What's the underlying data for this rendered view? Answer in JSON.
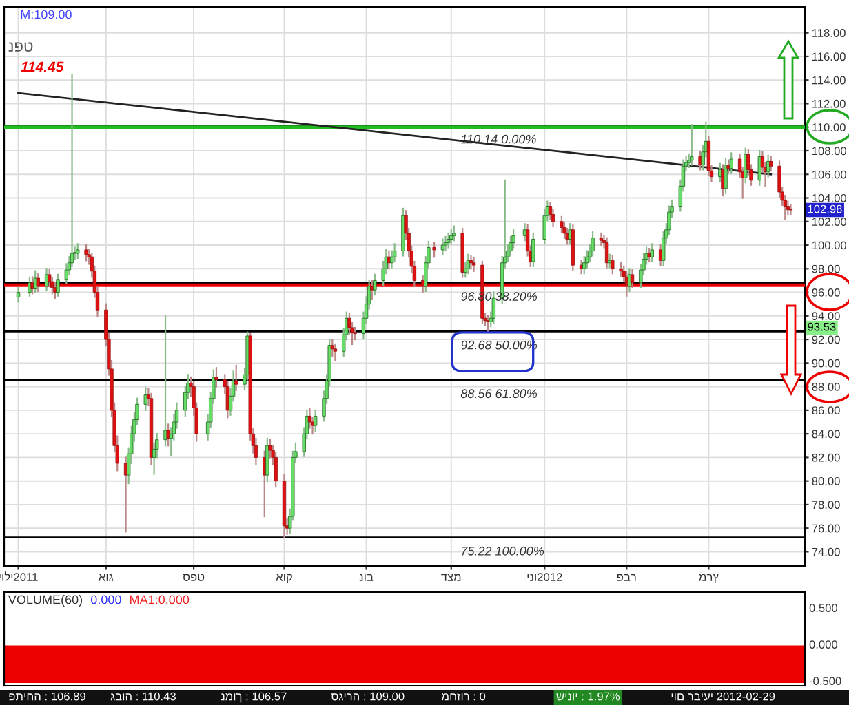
{
  "chart_data": [
    {
      "type": "candlestick",
      "x": [
        "2011-07-01",
        "2011-07-05",
        "2011-07-06",
        "2011-07-07",
        "2011-07-08",
        "2011-07-11",
        "2011-07-12",
        "2011-07-13",
        "2011-07-14",
        "2011-07-15",
        "2011-07-18",
        "2011-07-19",
        "2011-07-20",
        "2011-07-21",
        "2011-07-22",
        "2011-07-25",
        "2011-07-26",
        "2011-07-27",
        "2011-07-28",
        "2011-07-29",
        "2011-08-01",
        "2011-08-02",
        "2011-08-03",
        "2011-08-04",
        "2011-08-05",
        "2011-08-08",
        "2011-08-09",
        "2011-08-10",
        "2011-08-11",
        "2011-08-12",
        "2011-08-15",
        "2011-08-16",
        "2011-08-17",
        "2011-08-18",
        "2011-08-19",
        "2011-08-22",
        "2011-08-23",
        "2011-08-24",
        "2011-08-25",
        "2011-08-26",
        "2011-08-29",
        "2011-08-30",
        "2011-08-31",
        "2011-09-01",
        "2011-09-02",
        "2011-09-06",
        "2011-09-07",
        "2011-09-08",
        "2011-09-09",
        "2011-09-12",
        "2011-09-13",
        "2011-09-14",
        "2011-09-15",
        "2011-09-16",
        "2011-09-19",
        "2011-09-20",
        "2011-09-21",
        "2011-09-22",
        "2011-09-23",
        "2011-09-26",
        "2011-09-27",
        "2011-09-28",
        "2011-09-29",
        "2011-09-30",
        "2011-10-03",
        "2011-10-04",
        "2011-10-05",
        "2011-10-06",
        "2011-10-07",
        "2011-10-10",
        "2011-10-11",
        "2011-10-12",
        "2011-10-13",
        "2011-10-14",
        "2011-10-17",
        "2011-10-18",
        "2011-10-19",
        "2011-10-20",
        "2011-10-21",
        "2011-10-24",
        "2011-10-25",
        "2011-10-26",
        "2011-10-27",
        "2011-10-28",
        "2011-10-31",
        "2011-11-01",
        "2011-11-02",
        "2011-11-03",
        "2011-11-04",
        "2011-11-07",
        "2011-11-08",
        "2011-11-09",
        "2011-11-10",
        "2011-11-11",
        "2011-11-14",
        "2011-11-15",
        "2011-11-16",
        "2011-11-17",
        "2011-11-18",
        "2011-11-21",
        "2011-11-22",
        "2011-11-23",
        "2011-11-25",
        "2011-11-28",
        "2011-11-29",
        "2011-11-30",
        "2011-12-01",
        "2011-12-02",
        "2011-12-05",
        "2011-12-06",
        "2011-12-07",
        "2011-12-08",
        "2011-12-09",
        "2011-12-12",
        "2011-12-13",
        "2011-12-14",
        "2011-12-15",
        "2011-12-16",
        "2011-12-19",
        "2011-12-20",
        "2011-12-21",
        "2011-12-22",
        "2011-12-23",
        "2011-12-27",
        "2011-12-28",
        "2011-12-29",
        "2011-12-30",
        "2012-01-03",
        "2012-01-04",
        "2012-01-05",
        "2012-01-06",
        "2012-01-09",
        "2012-01-10",
        "2012-01-11",
        "2012-01-12",
        "2012-01-13",
        "2012-01-16",
        "2012-01-17",
        "2012-01-18",
        "2012-01-19",
        "2012-01-20",
        "2012-01-23",
        "2012-01-24",
        "2012-01-25",
        "2012-01-26",
        "2012-01-27",
        "2012-01-30",
        "2012-01-31",
        "2012-02-01",
        "2012-02-02",
        "2012-02-03",
        "2012-02-06",
        "2012-02-07",
        "2012-02-08",
        "2012-02-09",
        "2012-02-10",
        "2012-02-13",
        "2012-02-14",
        "2012-02-15",
        "2012-02-16",
        "2012-02-17",
        "2012-02-20",
        "2012-02-21",
        "2012-02-22",
        "2012-02-23",
        "2012-02-24",
        "2012-02-27",
        "2012-02-28",
        "2012-02-29",
        "2012-03-01",
        "2012-03-02",
        "2012-03-05",
        "2012-03-06",
        "2012-03-07",
        "2012-03-08",
        "2012-03-09",
        "2012-03-12",
        "2012-03-13",
        "2012-03-14",
        "2012-03-15",
        "2012-03-16",
        "2012-03-19",
        "2012-03-20",
        "2012-03-21",
        "2012-03-22",
        "2012-03-23",
        "2012-03-26",
        "2012-03-27",
        "2012-03-28",
        "2012-03-29",
        "2012-03-30"
      ],
      "ohlc": [
        [
          95.6,
          96.4,
          95.2,
          96.0
        ],
        [
          96.0,
          97.2,
          95.7,
          96.8
        ],
        [
          96.8,
          97.3,
          95.9,
          96.3
        ],
        [
          96.3,
          97.8,
          96.0,
          97.2
        ],
        [
          97.2,
          97.6,
          96.1,
          96.5
        ],
        [
          96.5,
          98.0,
          96.2,
          97.5
        ],
        [
          97.5,
          97.9,
          96.5,
          96.9
        ],
        [
          96.9,
          97.2,
          95.9,
          96.4
        ],
        [
          96.4,
          96.8,
          95.5,
          96.0
        ],
        [
          96.0,
          97.5,
          95.7,
          97.1
        ],
        [
          97.1,
          98.4,
          96.8,
          97.9
        ],
        [
          97.9,
          99.0,
          97.5,
          98.5
        ],
        [
          98.5,
          114.45,
          98.2,
          99.3
        ],
        [
          99.3,
          99.8,
          98.8,
          99.3
        ],
        [
          99.3,
          100.1,
          98.9,
          99.6
        ],
        [
          99.6,
          100.0,
          98.7,
          99.2
        ],
        [
          99.2,
          99.6,
          98.4,
          99.0
        ],
        [
          99.0,
          99.3,
          97.3,
          97.8
        ],
        [
          97.8,
          98.2,
          95.6,
          96.0
        ],
        [
          96.0,
          96.4,
          94.0,
          94.5
        ],
        [
          94.5,
          95.0,
          91.5,
          92.0
        ],
        [
          92.0,
          92.5,
          89.0,
          89.5
        ],
        [
          89.5,
          90.2,
          85.5,
          86.0
        ],
        [
          86.0,
          86.6,
          82.5,
          83.0
        ],
        [
          83.0,
          83.8,
          80.9,
          81.5
        ],
        [
          81.5,
          82.0,
          75.7,
          80.5
        ],
        [
          80.5,
          82.8,
          79.8,
          82.3
        ],
        [
          82.3,
          84.6,
          81.5,
          84.0
        ],
        [
          84.0,
          85.8,
          83.4,
          85.2
        ],
        [
          85.2,
          87.0,
          84.8,
          86.5
        ],
        [
          86.5,
          87.9,
          86.0,
          87.3
        ],
        [
          87.3,
          87.8,
          86.4,
          87.0
        ],
        [
          87.0,
          87.4,
          81.4,
          82.0
        ],
        [
          82.0,
          83.2,
          80.6,
          82.7
        ],
        [
          82.7,
          84.0,
          82.0,
          83.5
        ],
        [
          83.5,
          94.0,
          83.0,
          84.3
        ],
        [
          84.3,
          84.8,
          83.0,
          83.6
        ],
        [
          83.6,
          84.5,
          82.2,
          84.0
        ],
        [
          84.0,
          85.6,
          83.5,
          85.0
        ],
        [
          85.0,
          86.6,
          84.5,
          86.0
        ],
        [
          86.0,
          88.0,
          85.5,
          87.5
        ],
        [
          87.5,
          89.0,
          87.0,
          88.3
        ],
        [
          88.3,
          88.8,
          87.2,
          88.0
        ],
        [
          88.0,
          88.4,
          85.6,
          86.2
        ],
        [
          86.2,
          86.6,
          83.4,
          84.0
        ],
        [
          84.0,
          85.6,
          83.5,
          85.0
        ],
        [
          85.0,
          87.5,
          84.6,
          87.0
        ],
        [
          87.0,
          89.4,
          86.6,
          88.8
        ],
        [
          88.8,
          89.6,
          88.0,
          88.6
        ],
        [
          88.6,
          89.0,
          87.4,
          88.0
        ],
        [
          88.0,
          88.4,
          85.4,
          86.0
        ],
        [
          86.0,
          87.8,
          85.6,
          87.2
        ],
        [
          87.2,
          89.3,
          86.8,
          88.5
        ],
        [
          88.5,
          89.8,
          87.7,
          88.2
        ],
        [
          88.2,
          89.5,
          87.8,
          89.0
        ],
        [
          89.0,
          92.6,
          88.6,
          92.3
        ],
        [
          92.3,
          92.5,
          83.5,
          84.0
        ],
        [
          84.0,
          84.4,
          82.4,
          83.0
        ],
        [
          83.0,
          83.6,
          81.4,
          82.0
        ],
        [
          82.0,
          82.5,
          77.0,
          80.5
        ],
        [
          80.5,
          83.6,
          80.0,
          83.0
        ],
        [
          83.0,
          83.5,
          82.0,
          82.6
        ],
        [
          82.6,
          83.0,
          81.4,
          82.0
        ],
        [
          82.0,
          82.4,
          79.5,
          80.0
        ],
        [
          80.0,
          80.5,
          75.22,
          76.2
        ],
        [
          76.2,
          76.8,
          75.5,
          76.0
        ],
        [
          76.0,
          77.6,
          75.6,
          77.0
        ],
        [
          77.0,
          82.5,
          76.7,
          82.0
        ],
        [
          82.0,
          83.2,
          81.6,
          82.5
        ],
        [
          82.5,
          84.5,
          82.1,
          84.0
        ],
        [
          84.0,
          86.0,
          83.6,
          85.5
        ],
        [
          85.5,
          86.1,
          84.5,
          85.0
        ],
        [
          85.0,
          85.4,
          84.0,
          84.7
        ],
        [
          84.7,
          86.0,
          84.2,
          85.5
        ],
        [
          85.5,
          87.6,
          85.1,
          87.0
        ],
        [
          87.0,
          89.0,
          86.6,
          88.5
        ],
        [
          88.5,
          92.0,
          88.1,
          91.5
        ],
        [
          91.5,
          92.0,
          90.6,
          91.2
        ],
        [
          91.2,
          91.6,
          90.2,
          91.0
        ],
        [
          91.0,
          92.9,
          90.6,
          92.4
        ],
        [
          92.4,
          94.3,
          92.0,
          93.8
        ],
        [
          93.8,
          94.2,
          92.5,
          93.0
        ],
        [
          93.0,
          93.4,
          91.6,
          92.6
        ],
        [
          92.6,
          93.0,
          92.0,
          92.5
        ],
        [
          92.5,
          94.3,
          92.1,
          93.8
        ],
        [
          93.8,
          95.6,
          93.4,
          95.0
        ],
        [
          95.0,
          97.0,
          94.6,
          96.5
        ],
        [
          96.5,
          97.0,
          95.4,
          96.2
        ],
        [
          96.2,
          97.5,
          95.8,
          97.0
        ],
        [
          97.0,
          98.6,
          96.6,
          98.0
        ],
        [
          98.0,
          99.6,
          97.6,
          99.0
        ],
        [
          99.0,
          99.5,
          98.0,
          98.5
        ],
        [
          98.5,
          99.5,
          98.1,
          99.0
        ],
        [
          99.0,
          100.1,
          98.6,
          99.5
        ],
        [
          99.5,
          103.1,
          99.1,
          102.5
        ],
        [
          102.5,
          102.9,
          100.5,
          101.0
        ],
        [
          101.0,
          101.4,
          99.0,
          99.5
        ],
        [
          99.5,
          99.9,
          97.7,
          98.2
        ],
        [
          98.2,
          98.6,
          96.5,
          97.0
        ],
        [
          97.0,
          97.4,
          96.0,
          96.5
        ],
        [
          96.5,
          99.0,
          96.1,
          98.5
        ],
        [
          98.5,
          100.3,
          98.1,
          99.8
        ],
        [
          99.8,
          100.2,
          99.0,
          99.6
        ],
        [
          99.6,
          100.5,
          99.2,
          100.0
        ],
        [
          100.0,
          100.7,
          99.6,
          100.2
        ],
        [
          100.2,
          101.0,
          99.8,
          100.5
        ],
        [
          100.5,
          101.3,
          100.1,
          100.8
        ],
        [
          100.8,
          101.6,
          100.4,
          101.0
        ],
        [
          101.0,
          101.4,
          97.3,
          97.7
        ],
        [
          97.7,
          98.5,
          97.3,
          98.0
        ],
        [
          98.0,
          99.2,
          97.6,
          98.7
        ],
        [
          98.7,
          99.1,
          98.0,
          98.5
        ],
        [
          98.5,
          98.9,
          97.8,
          98.3
        ],
        [
          98.3,
          98.6,
          93.4,
          93.8
        ],
        [
          93.8,
          94.2,
          93.2,
          93.6
        ],
        [
          93.6,
          94.0,
          92.7,
          93.5
        ],
        [
          93.5,
          94.3,
          93.1,
          93.8
        ],
        [
          93.8,
          96.0,
          93.4,
          95.5
        ],
        [
          95.5,
          99.0,
          95.1,
          98.5
        ],
        [
          98.5,
          105.5,
          98.1,
          99.0
        ],
        [
          99.0,
          100.0,
          98.6,
          99.5
        ],
        [
          99.5,
          100.7,
          99.1,
          100.2
        ],
        [
          100.2,
          101.3,
          99.8,
          100.8
        ],
        [
          100.8,
          101.8,
          100.4,
          101.3
        ],
        [
          101.3,
          101.7,
          99.1,
          99.5
        ],
        [
          99.5,
          99.9,
          98.2,
          98.6
        ],
        [
          98.6,
          101.0,
          98.2,
          100.5
        ],
        [
          100.5,
          103.0,
          100.1,
          102.5
        ],
        [
          102.5,
          103.7,
          102.1,
          103.3
        ],
        [
          103.3,
          103.6,
          102.2,
          102.6
        ],
        [
          102.6,
          103.0,
          101.6,
          102.0
        ],
        [
          102.0,
          102.4,
          101.1,
          101.5
        ],
        [
          101.5,
          101.9,
          100.6,
          101.0
        ],
        [
          101.0,
          101.4,
          100.1,
          100.5
        ],
        [
          100.5,
          101.8,
          100.1,
          101.3
        ],
        [
          101.3,
          101.7,
          97.9,
          98.3
        ],
        [
          98.3,
          98.7,
          97.6,
          98.0
        ],
        [
          98.0,
          99.0,
          97.6,
          98.5
        ],
        [
          98.5,
          99.5,
          98.1,
          99.0
        ],
        [
          99.0,
          100.0,
          98.6,
          99.5
        ],
        [
          99.5,
          101.1,
          99.1,
          100.6
        ],
        [
          100.6,
          101.0,
          100.0,
          100.4
        ],
        [
          100.4,
          100.8,
          99.8,
          100.2
        ],
        [
          100.2,
          100.6,
          98.1,
          98.5
        ],
        [
          98.5,
          99.2,
          98.1,
          98.7
        ],
        [
          98.7,
          99.1,
          97.6,
          98.0
        ],
        [
          98.0,
          98.5,
          97.4,
          97.8
        ],
        [
          97.8,
          98.2,
          96.9,
          97.3
        ],
        [
          97.3,
          97.7,
          95.7,
          96.5
        ],
        [
          96.5,
          98.0,
          96.1,
          97.5
        ],
        [
          97.5,
          97.9,
          96.4,
          96.8
        ],
        [
          96.8,
          98.3,
          96.4,
          97.9
        ],
        [
          97.9,
          99.3,
          97.5,
          98.8
        ],
        [
          98.8,
          99.8,
          98.4,
          99.3
        ],
        [
          99.3,
          99.7,
          98.6,
          99.0
        ],
        [
          99.0,
          100.1,
          98.6,
          99.6
        ],
        [
          99.6,
          100.0,
          98.3,
          98.7
        ],
        [
          98.7,
          101.1,
          98.3,
          100.6
        ],
        [
          100.6,
          101.8,
          100.2,
          101.3
        ],
        [
          101.3,
          103.3,
          100.9,
          102.8
        ],
        [
          102.8,
          103.8,
          102.4,
          103.3
        ],
        [
          103.3,
          105.5,
          102.9,
          105.0
        ],
        [
          105.0,
          107.2,
          104.6,
          106.7
        ],
        [
          106.7,
          107.5,
          106.3,
          107.0
        ],
        [
          107.0,
          107.7,
          106.6,
          107.2
        ],
        [
          107.2,
          110.2,
          106.8,
          107.5
        ],
        [
          107.5,
          107.9,
          106.4,
          106.8
        ],
        [
          106.8,
          108.4,
          106.4,
          107.9
        ],
        [
          107.9,
          110.4,
          107.5,
          108.8
        ],
        [
          108.8,
          109.2,
          105.9,
          106.3
        ],
        [
          106.3,
          106.7,
          105.4,
          105.8
        ],
        [
          105.8,
          106.9,
          105.4,
          106.4
        ],
        [
          106.4,
          106.8,
          104.2,
          104.8
        ],
        [
          104.8,
          107.3,
          104.4,
          106.8
        ],
        [
          106.8,
          107.2,
          106.1,
          106.5
        ],
        [
          106.5,
          107.8,
          106.1,
          107.3
        ],
        [
          107.3,
          107.7,
          105.8,
          106.2
        ],
        [
          106.2,
          106.6,
          104.0,
          105.7
        ],
        [
          105.7,
          108.2,
          105.3,
          107.7
        ],
        [
          107.7,
          108.1,
          106.0,
          106.4
        ],
        [
          106.4,
          106.8,
          105.1,
          105.5
        ],
        [
          105.5,
          108.0,
          105.1,
          107.5
        ],
        [
          107.5,
          107.9,
          106.2,
          106.6
        ],
        [
          106.6,
          107.0,
          105.0,
          106.2
        ],
        [
          106.2,
          107.6,
          105.8,
          107.1
        ],
        [
          107.1,
          107.5,
          106.3,
          106.7
        ],
        [
          106.7,
          107.1,
          104.1,
          104.5
        ],
        [
          104.5,
          104.9,
          103.4,
          103.8
        ],
        [
          103.8,
          104.2,
          102.2,
          103.3
        ],
        [
          103.3,
          103.7,
          102.6,
          103.0
        ],
        [
          103.0,
          103.4,
          102.6,
          102.98
        ]
      ],
      "series": [
        {
          "type": "line",
          "color": "#222222",
          "x": [
            "2011-07-01",
            "2012-03-23"
          ],
          "values": [
            112.9,
            106.0
          ]
        }
      ],
      "xlim": [
        "2011-06-26",
        "2012-04-04"
      ],
      "xticks": [
        {
          "value": "2011-07-01",
          "label": "יולי2011"
        },
        {
          "value": "2011-08-01",
          "label": "אוג"
        },
        {
          "value": "2011-09-01",
          "label": "ספט"
        },
        {
          "value": "2011-10-03",
          "label": "אוק"
        },
        {
          "value": "2011-11-01",
          "label": "נוב"
        },
        {
          "value": "2011-12-01",
          "label": "דצמ"
        },
        {
          "value": "2012-01-03",
          "label": "ינו2012"
        },
        {
          "value": "2012-02-01",
          "label": "פבר"
        },
        {
          "value": "2012-03-01",
          "label": "מרץ"
        }
      ],
      "ylim": [
        72.8,
        120.2
      ],
      "yticks": [
        {
          "value": 74,
          "label": "74.00"
        },
        {
          "value": 76,
          "label": "76.00"
        },
        {
          "value": 78,
          "label": "78.00"
        },
        {
          "value": 80,
          "label": "80.00"
        },
        {
          "value": 82,
          "label": "82.00"
        },
        {
          "value": 84,
          "label": "84.00"
        },
        {
          "value": 86,
          "label": "86.00"
        },
        {
          "value": 88,
          "label": "88.00"
        },
        {
          "value": 90,
          "label": "90.00"
        },
        {
          "value": 92,
          "label": "92.00"
        },
        {
          "value": 94,
          "label": "94.00"
        },
        {
          "value": 96,
          "label": "96.00"
        },
        {
          "value": 98,
          "label": "98.00"
        },
        {
          "value": 100,
          "label": "100.00"
        },
        {
          "value": 102,
          "label": "102.00"
        },
        {
          "value": 104,
          "label": "104.00"
        },
        {
          "value": 106,
          "label": "106.00"
        },
        {
          "value": 108,
          "label": "108.00"
        },
        {
          "value": 110,
          "label": "110.00"
        },
        {
          "value": 112,
          "label": "112.00"
        },
        {
          "value": 114,
          "label": "114.00"
        },
        {
          "value": 116,
          "label": "116.00"
        },
        {
          "value": 118,
          "label": "118.00"
        }
      ],
      "ref_lines": [
        {
          "axis": "y",
          "value": 110.14,
          "label": "110.14 0.00%",
          "color": "#000000"
        },
        {
          "axis": "y",
          "value": 96.8,
          "label": "96.80 38.20%",
          "color": "#000000"
        },
        {
          "axis": "y",
          "value": 92.68,
          "label": "92.68 50.00%",
          "color": "#000000"
        },
        {
          "axis": "y",
          "value": 88.56,
          "label": "88.56 61.80%",
          "color": "#000000"
        },
        {
          "axis": "y",
          "value": 75.22,
          "label": "75.22 100.00%",
          "color": "#000000"
        },
        {
          "axis": "y",
          "value": 110.0,
          "color": "#22bb22"
        },
        {
          "axis": "y",
          "value": 96.6,
          "color": "#ee0000"
        }
      ],
      "annotations": [
        "M:109.00",
        "נפט",
        {
          "text": "114.45",
          "x": "2011-07-20",
          "y": 114.45
        },
        "102.98",
        "93.53"
      ],
      "grid": true
    },
    {
      "type": "other",
      "title": "VOLUME(60)",
      "annotations": [
        "0.000",
        "MA1:0.000",
        "פתיחה : 106.89",
        "גבוה : 110.43",
        "נמוך : 106.57",
        "סגירה : 109.00",
        "מחזור : 0",
        "שינוי : 1.97%",
        "יום רביעי 2012-02-29",
        "0.500",
        "0.000",
        "-0.500"
      ]
    }
  ]
}
